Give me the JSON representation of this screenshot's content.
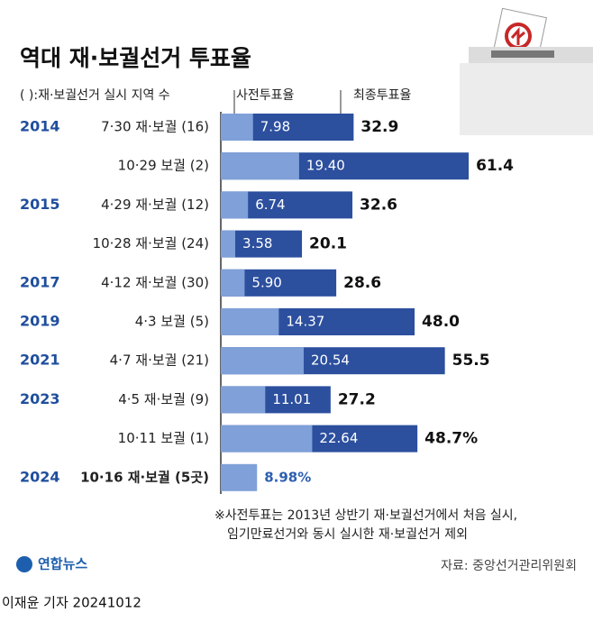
{
  "chart_data": {
    "type": "bar",
    "title": "역대 재·보궐선거 투표율",
    "subtitle": "( ):재·보궐선거 실시 지역 수",
    "years": [
      "2014",
      null,
      "2015",
      null,
      "2017",
      "2019",
      "2021",
      "2023",
      null,
      "2024"
    ],
    "categories": [
      "7·30 재·보궐 (16)",
      "10·29 보궐  (2)",
      "4·29 재·보궐 (12)",
      "10·28 재·보궐 (24)",
      "4·12 재·보궐 (30)",
      "4·3 보궐  (5)",
      "4·7 재·보궐 (21)",
      "4·5 재·보궐  (9)",
      "10·11 보궐  (1)",
      "10·16 재·보궐 (5곳)"
    ],
    "series": [
      {
        "name": "최종투표율",
        "color": "#2c4f9e",
        "values": [
          32.9,
          61.4,
          32.6,
          20.1,
          28.6,
          48.0,
          55.5,
          27.2,
          48.7,
          null
        ],
        "value_labels": [
          "32.9",
          "61.4",
          "32.6",
          "20.1",
          "28.6",
          "48.0",
          "55.5",
          "27.2",
          "48.7%",
          null
        ]
      },
      {
        "name": "사전투표율",
        "color": "#7fa0d8",
        "values": [
          7.98,
          19.4,
          6.74,
          3.58,
          5.9,
          14.37,
          20.54,
          11.01,
          22.64,
          8.98
        ],
        "value_labels": [
          "7.98",
          "19.40",
          "6.74",
          "3.58",
          "5.90",
          "14.37",
          "20.54",
          "11.01",
          "22.64",
          "8.98%"
        ]
      }
    ],
    "xlim": [
      0,
      70
    ],
    "notes": [
      "※사전투표는 2013년 상반기 재·보궐선거에서 처음 실시,",
      "임기만료선거와 동시 실시한 재·보궐선거 제외"
    ],
    "logo": "연합뉴스",
    "source": "자료: 중앙선거관리위원회",
    "credit": "이재윤 기자 20241012"
  }
}
